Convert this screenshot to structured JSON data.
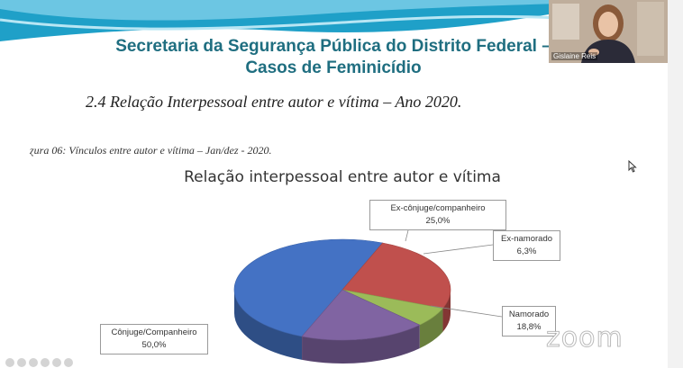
{
  "slide": {
    "title_line1": "Secretaria da Segurança Pública do Distrito Federal –",
    "title_line2": "Casos de Feminicídio",
    "section_heading": "2.4   Relação Interpessoal entre autor e vítima – Ano 2020.",
    "figure_caption": "ɀura 06: Vínculos entre autor e vítima – Jan/dez - 2020."
  },
  "chart_data": {
    "type": "pie",
    "title": "Relação interpessoal entre autor e vítima",
    "slices": [
      {
        "label": "Cônjuge/Companheiro",
        "value": 50.0,
        "value_text": "50,0%",
        "color": "#4472c4"
      },
      {
        "label": "Ex-cônjuge/companheiro",
        "value": 25.0,
        "value_text": "25,0%",
        "color": "#c0504d"
      },
      {
        "label": "Ex-namorado",
        "value": 6.3,
        "value_text": "6,3%",
        "color": "#9bbb59"
      },
      {
        "label": "Namorado",
        "value": 18.8,
        "value_text": "18,8%",
        "color": "#8064a2"
      }
    ]
  },
  "webcam": {
    "name": "Gislaine Reis"
  },
  "watermark": "zoom"
}
